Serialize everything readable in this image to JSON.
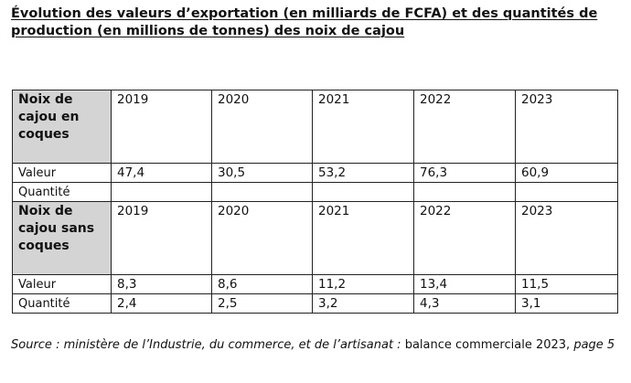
{
  "title": "Évolution des valeurs d’exportation (en milliards de FCFA) et des quantités de production (en millions de tonnes) des noix de cajou",
  "table": {
    "section_in_shell": {
      "header_label": "Noix de cajou en coques",
      "years": [
        "2019",
        "2020",
        "2021",
        "2022",
        "2023"
      ],
      "value_label": "Valeur",
      "values": [
        "47,4",
        "30,5",
        "53,2",
        "76,3",
        "60,9"
      ],
      "quantity_label": "Quantité",
      "quantities": [
        "",
        "",
        "",
        "",
        ""
      ]
    },
    "section_shelled": {
      "header_label": "Noix de cajou sans coques",
      "years": [
        "2019",
        "2020",
        "2021",
        "2022",
        "2023"
      ],
      "value_label": "Valeur",
      "values": [
        "8,3",
        "8,6",
        "11,2",
        "13,4",
        "11,5"
      ],
      "quantity_label": "Quantité",
      "quantities": [
        "2,4",
        "2,5",
        "3,2",
        "4,3",
        "3,1"
      ]
    }
  },
  "source": {
    "prefix": "Source : ministère de l’Industrie, du commerce, et de l’artisanat :",
    "middle": " balance commerciale 2023,",
    "suffix": " page 5"
  },
  "colors": {
    "header_fill": "#d4d4d4",
    "border": "#222222",
    "text": "#111111"
  }
}
